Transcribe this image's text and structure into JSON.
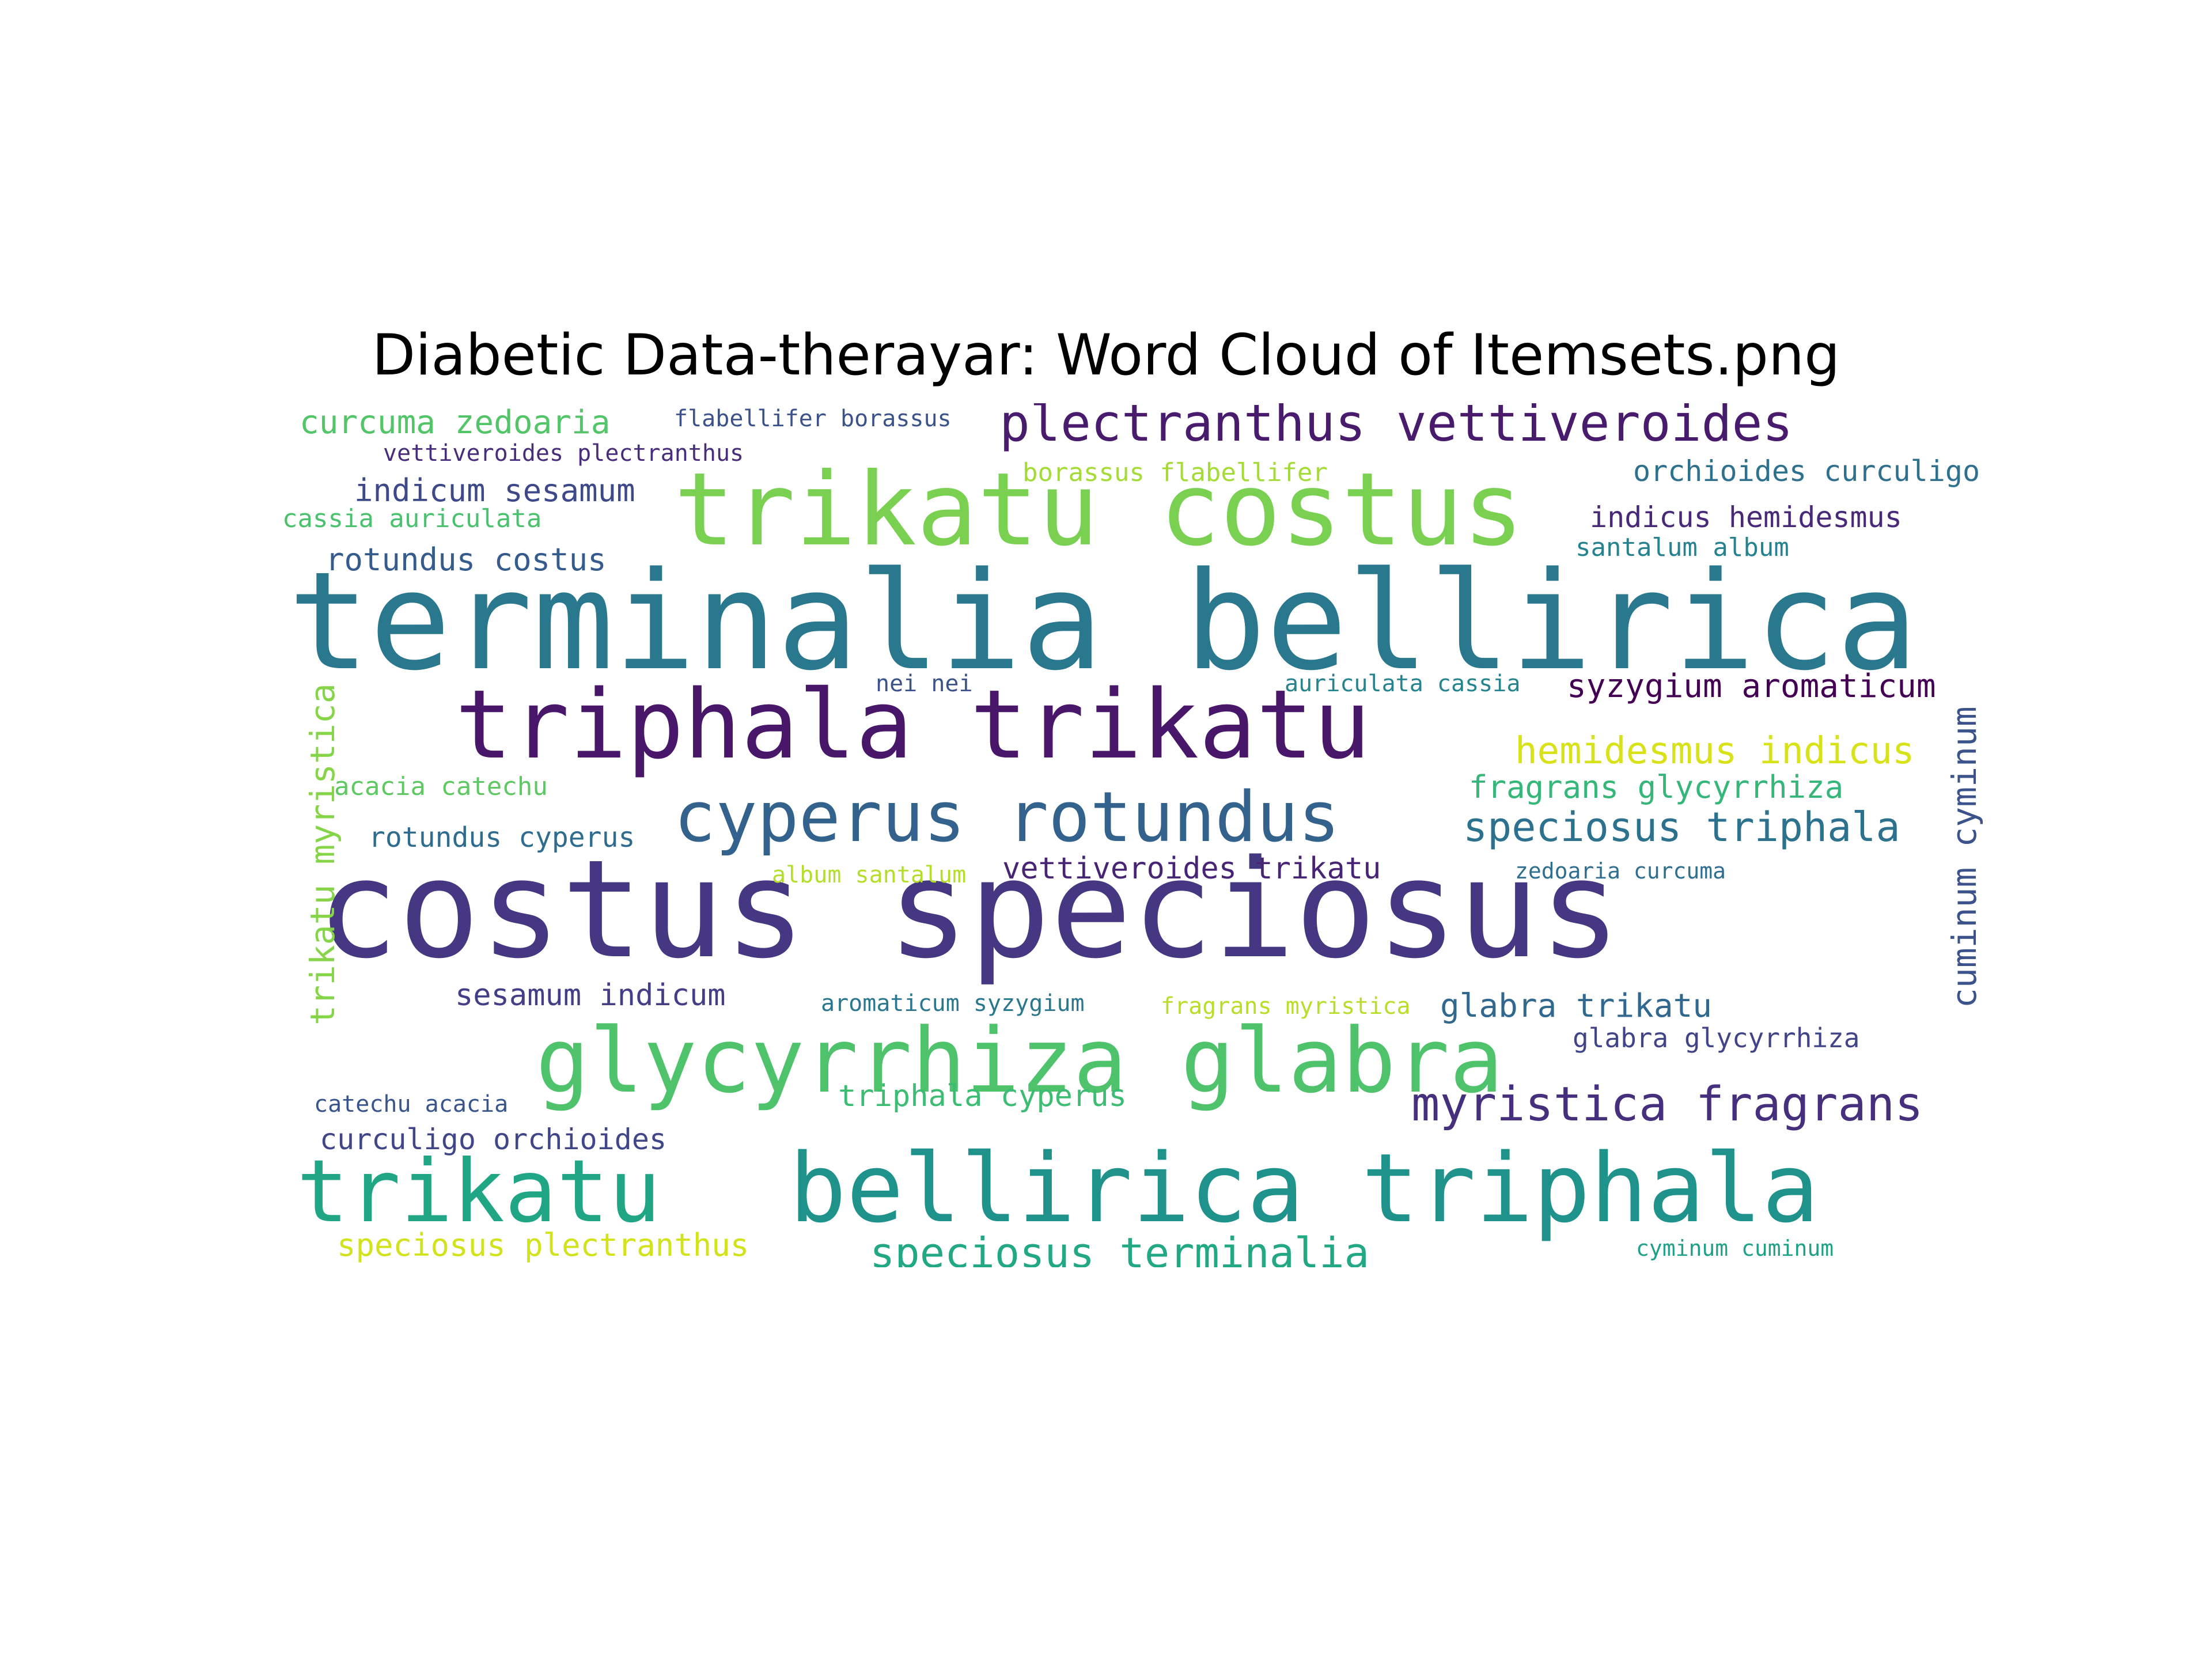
{
  "figure": {
    "title": "Diabetic Data-therayar: Word Cloud of Itemsets.png"
  },
  "word_cloud": {
    "background": "#ffffff",
    "words": [
      {
        "text": "terminalia bellirica",
        "color": "#2a788e",
        "rank": 1
      },
      {
        "text": "costus speciosus",
        "color": "#453781",
        "rank": 2
      },
      {
        "text": "trikatu costus",
        "color": "#7ad151",
        "rank": 3
      },
      {
        "text": "triphala trikatu",
        "color": "#481769",
        "rank": 4
      },
      {
        "text": "bellirica triphala",
        "color": "#20928c",
        "rank": 5
      },
      {
        "text": "glycyrrhiza glabra",
        "color": "#4ec36b",
        "rank": 6
      },
      {
        "text": "trikatu",
        "color": "#21a685",
        "rank": 7
      },
      {
        "text": "cyperus rotundus",
        "color": "#33638d",
        "rank": 8
      },
      {
        "text": "plectranthus vettiveroides",
        "color": "#481b6d",
        "rank": 9
      },
      {
        "text": "myristica fragrans",
        "color": "#46307e",
        "rank": 10
      },
      {
        "text": "speciosus terminalia",
        "color": "#22a884",
        "rank": 11
      },
      {
        "text": "speciosus triphala",
        "color": "#2c728e",
        "rank": 12
      },
      {
        "text": "hemidesmus indicus",
        "color": "#d8e219",
        "rank": 13
      },
      {
        "text": "syzygium aromaticum",
        "color": "#440154",
        "rank": 14
      },
      {
        "text": "vettiveroides trikatu",
        "color": "#482475",
        "rank": 15
      },
      {
        "text": "cuminum cyminum",
        "color": "#3b528b",
        "rank": 16
      },
      {
        "text": "trikatu myristica",
        "color": "#86d549",
        "rank": 17
      },
      {
        "text": "fragrans glycyrrhiza",
        "color": "#35b779",
        "rank": 18
      },
      {
        "text": "glabra trikatu",
        "color": "#31688e",
        "rank": 19
      },
      {
        "text": "curcuma zedoaria",
        "color": "#52c569",
        "rank": 20
      },
      {
        "text": "indicum sesamum",
        "color": "#3e4989",
        "rank": 21
      },
      {
        "text": "rotundus costus",
        "color": "#365c8d",
        "rank": 22
      },
      {
        "text": "rotundus cyperus",
        "color": "#2f6c8e",
        "rank": 23
      },
      {
        "text": "sesamum indicum",
        "color": "#433e85",
        "rank": 24
      },
      {
        "text": "curculigo orchioides",
        "color": "#404688",
        "rank": 25
      },
      {
        "text": "speciosus plectranthus",
        "color": "#d2e21b",
        "rank": 26
      },
      {
        "text": "triphala cyperus",
        "color": "#3dbc74",
        "rank": 27
      },
      {
        "text": "orchioides curculigo",
        "color": "#2d718e",
        "rank": 28
      },
      {
        "text": "indicus hemidesmus",
        "color": "#482878",
        "rank": 29
      },
      {
        "text": "glabra glycyrrhiza",
        "color": "#414487",
        "rank": 30
      },
      {
        "text": "santalum album",
        "color": "#26828e",
        "rank": 31
      },
      {
        "text": "flabellifer borassus",
        "color": "#3b528b",
        "rank": 32
      },
      {
        "text": "vettiveroides plectranthus",
        "color": "#472d7b",
        "rank": 33
      },
      {
        "text": "borassus flabellifer",
        "color": "#a5db36",
        "rank": 34
      },
      {
        "text": "cassia auriculata",
        "color": "#4ac16d",
        "rank": 35
      },
      {
        "text": "acacia catechu",
        "color": "#5ec962",
        "rank": 36
      },
      {
        "text": "catechu acacia",
        "color": "#39568c",
        "rank": 37
      },
      {
        "text": "auriculata cassia",
        "color": "#25848e",
        "rank": 38
      },
      {
        "text": "nei nei",
        "color": "#3b528b",
        "rank": 39
      },
      {
        "text": "album santalum",
        "color": "#b5de2b",
        "rank": 40
      },
      {
        "text": "aromaticum syzygium",
        "color": "#2a788e",
        "rank": 41
      },
      {
        "text": "fragrans myristica",
        "color": "#b8de29",
        "rank": 42
      },
      {
        "text": "zedoaria curcuma",
        "color": "#2e6e8e",
        "rank": 43
      },
      {
        "text": "cyminum cuminum",
        "color": "#1fa088",
        "rank": 44
      }
    ]
  }
}
